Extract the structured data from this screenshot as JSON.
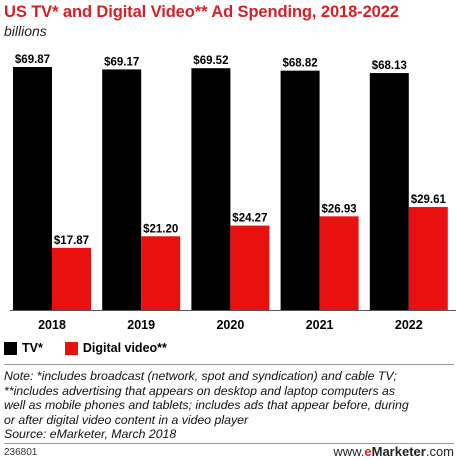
{
  "chart_data": {
    "type": "bar",
    "title": "US TV* and Digital Video** Ad Spending, 2018-2022",
    "subtitle": "billions",
    "categories": [
      "2018",
      "2019",
      "2020",
      "2021",
      "2022"
    ],
    "series": [
      {
        "name": "TV*",
        "color": "#000000",
        "values": [
          69.87,
          69.17,
          69.52,
          68.82,
          68.13
        ],
        "labels": [
          "$69.87",
          "$69.17",
          "$69.52",
          "$68.82",
          "$68.13"
        ]
      },
      {
        "name": "Digital video**",
        "color": "#e8110f",
        "values": [
          17.87,
          21.2,
          24.27,
          26.93,
          29.61
        ],
        "labels": [
          "$17.87",
          "$21.20",
          "$24.27",
          "$26.93",
          "$29.61"
        ]
      }
    ],
    "ylim": [
      0,
      69.87
    ],
    "grid": false,
    "legend_position": "bottom-left"
  },
  "note_lines": [
    "Note: *includes broadcast (network, spot and syndication) and cable TV;",
    "**includes advertising that appears on desktop and laptop computers as",
    "well as mobile phones and tablets; includes ads that appear before, during",
    "or after digital video content in a video player",
    "Source: eMarketer, March 2018"
  ],
  "footer": {
    "chart_id": "236801",
    "brand_prefix": "www.",
    "brand_e": "e",
    "brand_name": "Marketer",
    "brand_suffix": ".com"
  }
}
